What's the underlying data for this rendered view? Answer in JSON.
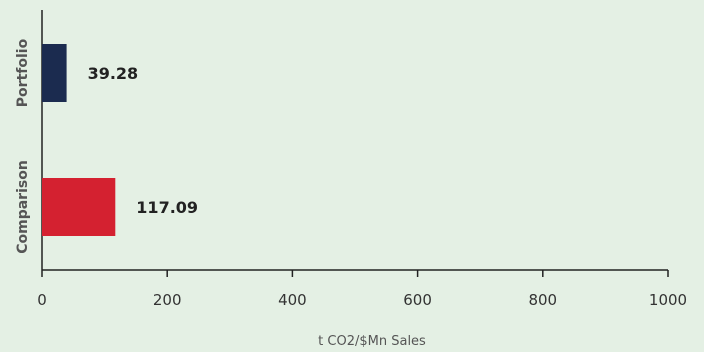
{
  "chart_data": {
    "type": "bar",
    "orientation": "horizontal",
    "categories": [
      "Portfolio",
      "Comparison"
    ],
    "values": [
      39.28,
      117.09
    ],
    "data_labels": [
      "39.28",
      "117.09"
    ],
    "colors": [
      "#1b2b4f",
      "#d42130"
    ],
    "xlabel": "t CO2/$Mn Sales",
    "xlim": [
      0,
      1000
    ],
    "x_ticks": [
      0,
      200,
      400,
      600,
      800,
      1000
    ],
    "grid": false,
    "legend": "none"
  }
}
